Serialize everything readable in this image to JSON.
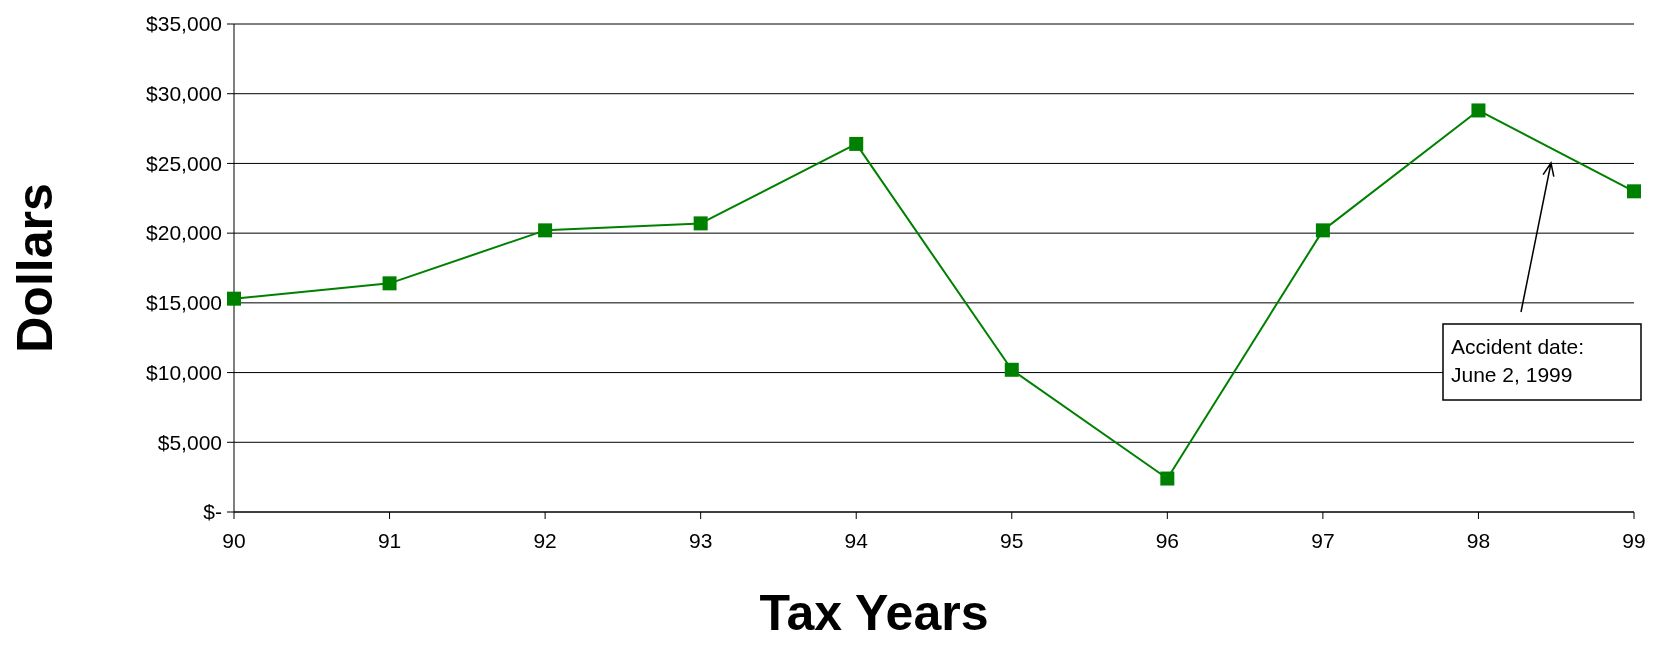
{
  "chart_data": {
    "type": "line",
    "xlabel": "Tax Years",
    "ylabel": "Dollars",
    "x": [
      90,
      91,
      92,
      93,
      94,
      95,
      96,
      97,
      98,
      99
    ],
    "series": [
      {
        "color": "#008000",
        "values": [
          15300,
          16400,
          20200,
          20700,
          26400,
          10200,
          2400,
          20200,
          28800,
          23000
        ]
      }
    ],
    "xlim": [
      90,
      99
    ],
    "xticks": [
      90,
      91,
      92,
      93,
      94,
      95,
      96,
      97,
      98,
      99
    ],
    "ylim": [
      0,
      35000
    ],
    "yticks": [
      {
        "value": 0,
        "label": "$-"
      },
      {
        "value": 5000,
        "label": "$5,000"
      },
      {
        "value": 10000,
        "label": "$10,000"
      },
      {
        "value": 15000,
        "label": "$15,000"
      },
      {
        "value": 20000,
        "label": "$20,000"
      },
      {
        "value": 25000,
        "label": "$25,000"
      },
      {
        "value": 30000,
        "label": "$30,000"
      },
      {
        "value": 35000,
        "label": "$35,000"
      }
    ],
    "grid": "y",
    "marker": "square",
    "line_style": "solid",
    "annotations": [
      "Accident date:\nJune 2, 1999"
    ]
  }
}
